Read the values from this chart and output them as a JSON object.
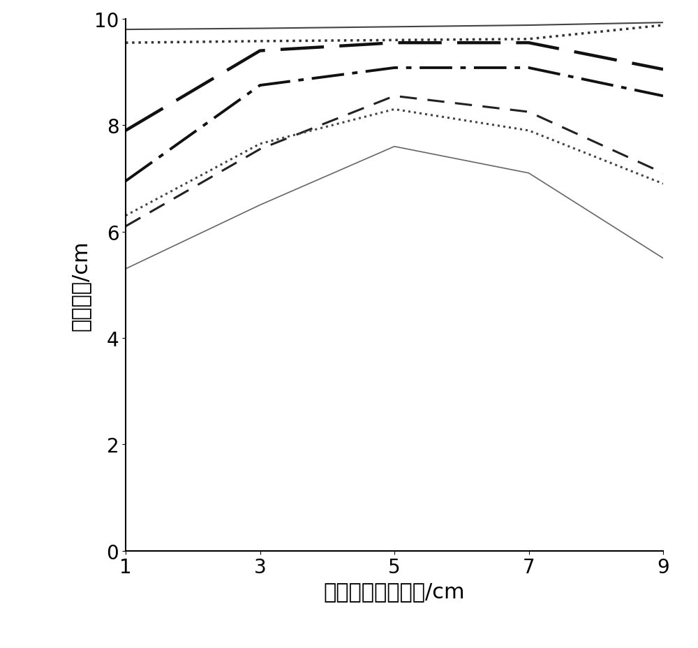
{
  "x": [
    1,
    3,
    5,
    7,
    9
  ],
  "series": [
    {
      "name": "line1_solid_top",
      "y": [
        9.8,
        9.82,
        9.85,
        9.88,
        9.93
      ],
      "color": "#444444",
      "linestyle": "solid",
      "linewidth": 1.5,
      "dash_seq": null
    },
    {
      "name": "line2_dense_dotted",
      "y": [
        9.55,
        9.58,
        9.6,
        9.62,
        9.88
      ],
      "color": "#333333",
      "linestyle": "dotted",
      "linewidth": 2.5,
      "dash_seq": null
    },
    {
      "name": "line3_long_dash",
      "y": [
        7.9,
        9.4,
        9.55,
        9.55,
        9.05
      ],
      "color": "#111111",
      "linestyle": "dashed",
      "linewidth": 3.2,
      "dash_seq": [
        14,
        5
      ]
    },
    {
      "name": "line4_dash_dot",
      "y": [
        6.95,
        8.75,
        9.08,
        9.08,
        8.55
      ],
      "color": "#111111",
      "linestyle": "dashdot",
      "linewidth": 2.8,
      "dash_seq": [
        12,
        3,
        2,
        3
      ]
    },
    {
      "name": "line5_medium_dash",
      "y": [
        6.1,
        7.55,
        8.55,
        8.25,
        7.1
      ],
      "color": "#222222",
      "linestyle": "dashed",
      "linewidth": 2.2,
      "dash_seq": [
        8,
        5
      ]
    },
    {
      "name": "line6_small_dotted",
      "y": [
        6.3,
        7.65,
        8.3,
        7.9,
        6.9
      ],
      "color": "#444444",
      "linestyle": "dotted",
      "linewidth": 2.2,
      "dash_seq": null
    },
    {
      "name": "line7_solid_thin",
      "y": [
        5.3,
        6.5,
        7.6,
        7.1,
        5.5
      ],
      "color": "#666666",
      "linestyle": "solid",
      "linewidth": 1.2,
      "dash_seq": null
    }
  ],
  "xlabel": "与土槽一侧板距离/cm",
  "ylabel": "冻土深度/cm",
  "xlim": [
    1,
    9
  ],
  "ylim": [
    0,
    10
  ],
  "xticks": [
    1,
    3,
    5,
    7,
    9
  ],
  "yticks": [
    0,
    2,
    4,
    6,
    8,
    10
  ],
  "xlabel_fontsize": 22,
  "ylabel_fontsize": 22,
  "tick_fontsize": 20,
  "figsize": [
    10.0,
    9.29
  ],
  "dpi": 100
}
